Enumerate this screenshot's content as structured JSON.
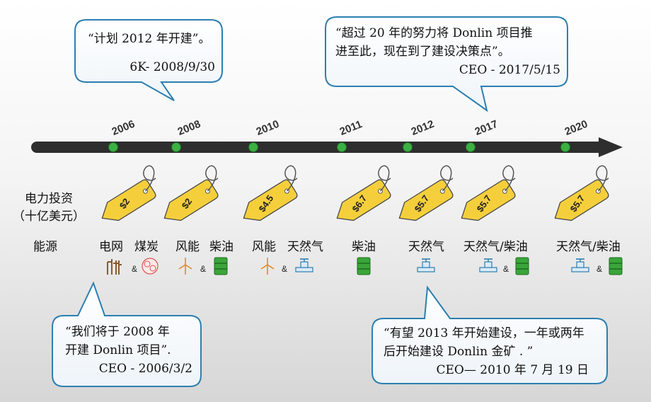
{
  "quotes": [
    {
      "text": "“计划 2012 年开建”。",
      "source": "6K- 2008/9/30"
    },
    {
      "line1": "“超过 20 年的努力将 Donlin 项目推",
      "line2": "进至此，现在到了建设决策点”。",
      "source": "CEO - 2017/5/15"
    },
    {
      "line1": "“我们将于 2008 年",
      "line2": "开建 Donlin 项目”.",
      "source": "CEO - 2006/3/2"
    },
    {
      "line1": "“有望 2013 年开始建设，一年或两年",
      "line2": "后开始建设 Donlin 金矿 . ”",
      "source": "CEO— 2010 年 7 月 19 日"
    }
  ],
  "timeline": {
    "years": [
      "2006",
      "2008",
      "2010",
      "2011",
      "2012",
      "2017",
      "2020"
    ],
    "dot_color": "#3cb043",
    "arrow_color": "#2e2e2e"
  },
  "labels": {
    "investment_line1": "电力投资",
    "investment_line2": "（十亿美元）",
    "energy": "能源"
  },
  "price_tags": [
    "$2",
    "$2",
    "$4.5",
    "$6.7",
    "$5.7",
    "$5.7",
    "$5.7"
  ],
  "tag_color": "#f5cf3b",
  "energy_sources": [
    {
      "left": "电网",
      "right": "煤炭",
      "icons": [
        "grid-icon",
        "coal-icon"
      ]
    },
    {
      "left": "风能",
      "right": "柴油",
      "icons": [
        "wind-icon",
        "diesel-icon"
      ]
    },
    {
      "left": "风能",
      "right": "天然气",
      "icons": [
        "wind-icon",
        "gas-icon"
      ]
    },
    {
      "left": "柴油",
      "right": "",
      "icons": [
        "diesel-icon"
      ]
    },
    {
      "left": "天然气",
      "right": "",
      "icons": [
        "gas-icon"
      ]
    },
    {
      "left": "天然气/柴油",
      "right": "",
      "icons": [
        "gas-icon",
        "diesel-icon"
      ]
    },
    {
      "left": "天然气/柴油",
      "right": "",
      "icons": [
        "gas-icon",
        "diesel-icon"
      ]
    }
  ],
  "amp": "&"
}
